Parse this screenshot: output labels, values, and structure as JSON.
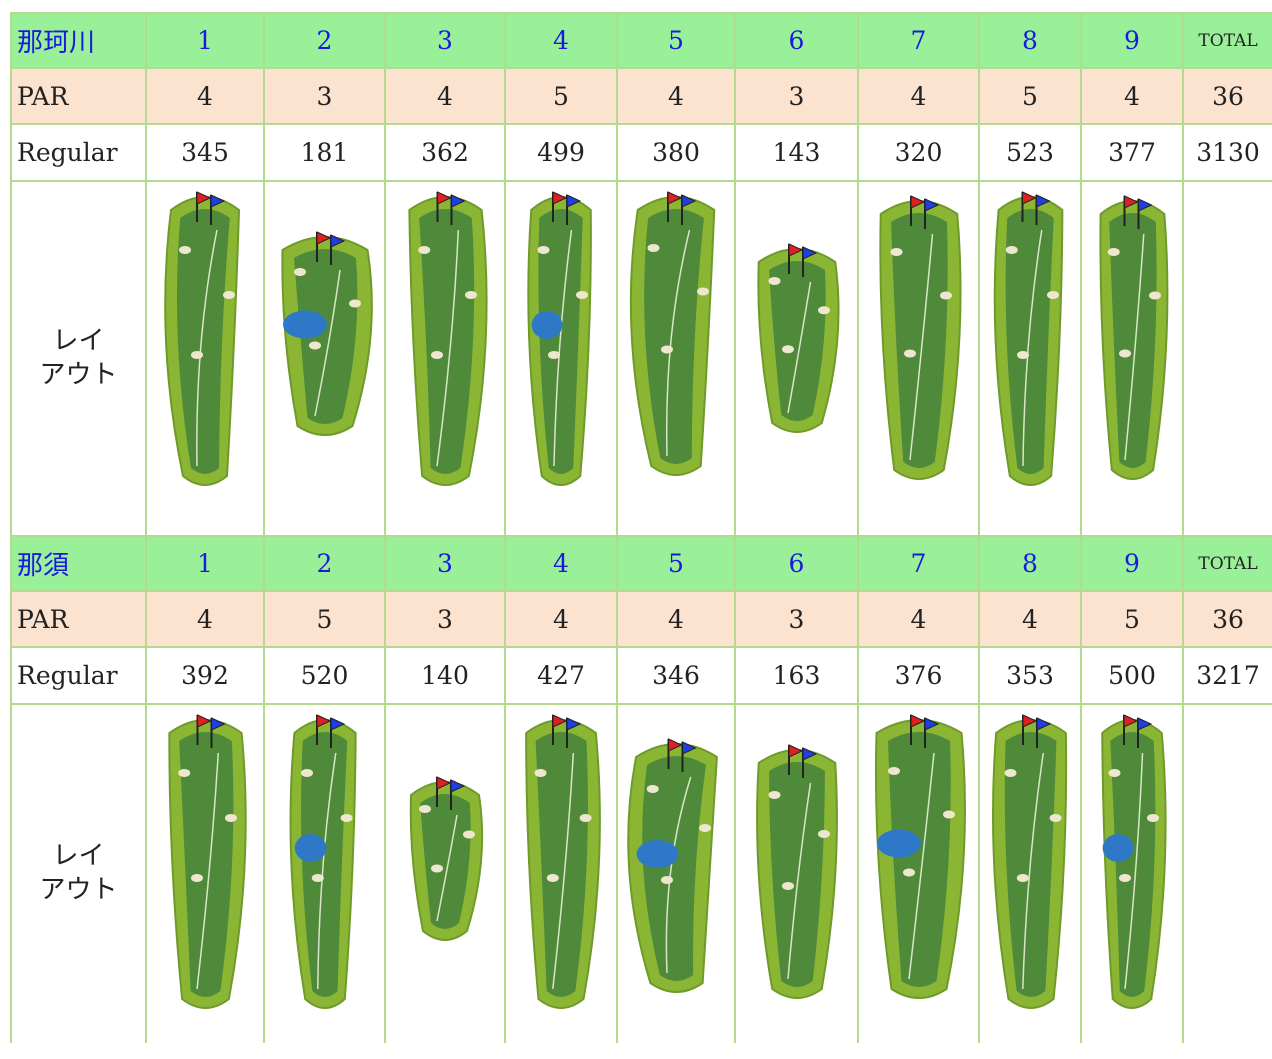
{
  "courses": [
    {
      "name": "那珂川",
      "holes": [
        "1",
        "2",
        "3",
        "4",
        "5",
        "6",
        "7",
        "8",
        "9"
      ],
      "total_label": "TOTAL",
      "par_label": "PAR",
      "par": [
        "4",
        "3",
        "4",
        "5",
        "4",
        "3",
        "4",
        "5",
        "4"
      ],
      "par_total": "36",
      "regular_label": "Regular",
      "regular": [
        "345",
        "181",
        "362",
        "499",
        "380",
        "143",
        "320",
        "523",
        "377"
      ],
      "regular_total": "3130",
      "layout_label_line1": "レイ",
      "layout_label_line2": "アウト"
    },
    {
      "name": "那須",
      "holes": [
        "1",
        "2",
        "3",
        "4",
        "5",
        "6",
        "7",
        "8",
        "9"
      ],
      "total_label": "TOTAL",
      "par_label": "PAR",
      "par": [
        "4",
        "5",
        "3",
        "4",
        "4",
        "3",
        "4",
        "4",
        "5"
      ],
      "par_total": "36",
      "regular_label": "Regular",
      "regular": [
        "392",
        "520",
        "140",
        "427",
        "346",
        "163",
        "376",
        "353",
        "500"
      ],
      "regular_total": "3217",
      "layout_label_line1": "レイ",
      "layout_label_line2": "アウト"
    }
  ],
  "colors": {
    "header_bg": "#99f099",
    "par_bg": "#fce3d0",
    "hole_number": "#1a1adf",
    "border": "#b5d98f",
    "fairway": "#4f8a3a",
    "trees": "#8bb634",
    "water": "#2f78c8",
    "bunker": "#efe6cf",
    "flag_red": "#e02020",
    "flag_blue": "#1f3fe0"
  }
}
